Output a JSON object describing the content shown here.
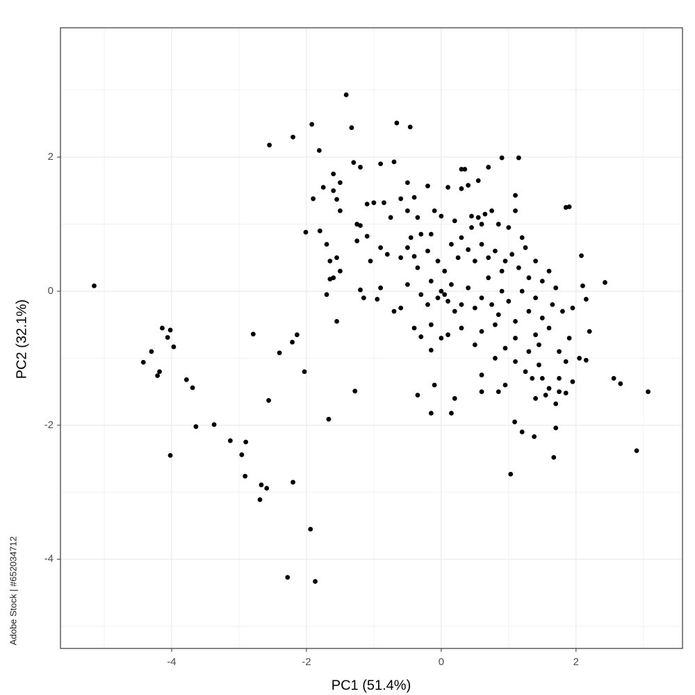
{
  "chart_data": {
    "type": "scatter",
    "x_label": "PC1 (51.4%)",
    "y_label": "PC2 (32.1%)",
    "watermark": "Adobe Stock | #652034712",
    "color": "#000000",
    "grid": true,
    "xlim": [
      -5.65,
      3.58
    ],
    "ylim": [
      -5.33,
      3.93
    ],
    "xticks": [
      -4,
      -2,
      0,
      2
    ],
    "yticks": [
      -4,
      -2,
      0,
      2
    ],
    "x": [
      -5.15,
      -4.14,
      -4.02,
      -4.06,
      -3.97,
      -4.3,
      -4.42,
      -4.18,
      -4.21,
      -3.78,
      -3.69,
      -3.64,
      -3.37,
      -4.02,
      -3.13,
      -2.9,
      -2.96,
      -2.91,
      -2.67,
      -2.59,
      -2.69,
      -2.2,
      -1.94,
      -2.28,
      -1.87,
      -2.79,
      -2.4,
      -2.21,
      -2.14,
      -2.03,
      -2.56,
      -1.67,
      -1.28,
      -1.41,
      -1.92,
      -2.2,
      -2.55,
      -1.33,
      -0.66,
      -0.46,
      -1.81,
      2.9,
      3.07,
      2.56,
      2.66,
      2.43,
      2.08,
      2.2,
      1.03,
      1.67,
      1.09,
      1.2,
      1.38,
      1.7,
      -2.01,
      -1.6,
      -1.5,
      -1.3,
      -1.2,
      -0.9,
      -0.7,
      -0.5,
      -0.4,
      -0.2,
      0.1,
      0.3,
      0.4,
      0.3,
      0.35,
      0.55,
      0.7,
      0.9,
      1.15,
      1.1,
      1.85,
      1.9,
      -1.9,
      -1.75,
      -1.6,
      -1.55,
      -1.5,
      -1.25,
      -1.2,
      -1.1,
      -1.0,
      -0.85,
      -0.75,
      -0.6,
      -0.5,
      -0.35,
      -0.1,
      0.0,
      0.2,
      0.45,
      0.55,
      0.65,
      0.6,
      0.75,
      0.85,
      1.0,
      1.1,
      1.2,
      0.45,
      -1.8,
      -1.7,
      -1.65,
      -1.55,
      -1.5,
      -1.6,
      -1.65,
      -1.25,
      -1.1,
      -1.05,
      -0.9,
      -0.8,
      -0.6,
      -0.5,
      -0.45,
      -0.4,
      -0.35,
      -0.3,
      -0.2,
      -0.15,
      -0.05,
      0.05,
      0.15,
      0.25,
      0.3,
      0.4,
      0.5,
      0.6,
      0.7,
      0.8,
      0.9,
      0.95,
      1.05,
      1.15,
      1.25,
      1.3,
      1.4,
      1.5,
      1.6,
      1.7,
      -1.7,
      -1.2,
      -1.15,
      -0.95,
      -0.9,
      -0.7,
      -0.6,
      -0.5,
      -0.3,
      -0.2,
      -0.15,
      -0.05,
      0.0,
      0.05,
      0.1,
      0.15,
      0.2,
      0.3,
      0.4,
      0.5,
      0.6,
      0.7,
      0.75,
      0.85,
      0.9,
      1.0,
      1.1,
      1.2,
      1.3,
      1.4,
      1.5,
      1.65,
      1.8,
      1.95,
      2.1,
      2.15,
      -1.55,
      -0.4,
      -0.3,
      -0.15,
      0.0,
      0.1,
      0.3,
      0.5,
      0.6,
      0.8,
      0.95,
      1.1,
      1.3,
      1.4,
      1.45,
      1.6,
      1.75,
      1.9,
      2.05,
      2.15,
      -0.15,
      0.6,
      0.8,
      0.95,
      1.1,
      1.25,
      1.35,
      1.45,
      1.5,
      1.6,
      1.75,
      1.85,
      1.95,
      0.6,
      0.85,
      1.4,
      1.55,
      1.75,
      1.85,
      -0.35,
      -0.1,
      -0.15,
      0.15,
      0.2,
      1.7
    ],
    "values": [
      0.08,
      -0.55,
      -0.58,
      -0.69,
      -0.83,
      -0.9,
      -1.06,
      -1.2,
      -1.26,
      -1.32,
      -1.44,
      -2.02,
      -1.99,
      -2.45,
      -2.23,
      -2.25,
      -2.44,
      -2.76,
      -2.89,
      -2.94,
      -3.11,
      -2.85,
      -3.55,
      -4.27,
      -4.33,
      -0.64,
      -0.92,
      -0.76,
      -0.65,
      -1.2,
      -1.63,
      -1.91,
      -1.49,
      2.93,
      2.49,
      2.3,
      2.18,
      2.44,
      2.51,
      2.45,
      2.1,
      -2.38,
      -1.5,
      -1.3,
      -1.38,
      0.13,
      0.53,
      -0.6,
      -2.73,
      -2.48,
      -1.95,
      -2.1,
      -2.17,
      -2.04,
      0.88,
      1.75,
      1.62,
      1.92,
      1.85,
      1.9,
      1.93,
      1.62,
      1.4,
      1.57,
      1.55,
      1.53,
      1.58,
      1.82,
      1.82,
      1.65,
      1.85,
      1.99,
      1.99,
      1.43,
      1.25,
      1.26,
      1.38,
      1.55,
      1.5,
      1.37,
      1.2,
      1.0,
      0.98,
      1.3,
      1.32,
      1.32,
      1.1,
      1.38,
      1.2,
      1.1,
      1.2,
      1.12,
      1.05,
      1.12,
      1.1,
      1.15,
      1.0,
      1.2,
      1.0,
      0.95,
      1.2,
      0.8,
      0.95,
      0.9,
      0.7,
      0.45,
      0.5,
      0.3,
      0.2,
      0.18,
      0.75,
      0.82,
      0.45,
      0.65,
      0.55,
      0.5,
      0.65,
      0.8,
      0.52,
      0.35,
      0.85,
      0.6,
      0.85,
      0.45,
      0.3,
      0.7,
      0.5,
      0.8,
      0.62,
      0.45,
      0.7,
      0.5,
      0.6,
      0.3,
      0.45,
      0.55,
      0.35,
      0.65,
      0.2,
      0.45,
      0.15,
      0.3,
      0.05,
      -0.05,
      0.02,
      -0.1,
      -0.12,
      0.05,
      -0.3,
      -0.25,
      0.1,
      -0.05,
      -0.2,
      0.15,
      -0.1,
      0.0,
      -0.05,
      -0.15,
      0.1,
      -0.3,
      -0.2,
      0.05,
      -0.25,
      -0.1,
      0.2,
      -0.2,
      -0.35,
      0.0,
      -0.15,
      -0.45,
      0.0,
      -0.3,
      -0.1,
      -0.4,
      -0.2,
      -0.3,
      -0.25,
      0.08,
      -0.12,
      -0.45,
      -0.55,
      -0.68,
      -0.5,
      -0.7,
      -0.65,
      -0.55,
      -0.8,
      -0.6,
      -0.5,
      -0.85,
      -0.7,
      -0.9,
      -0.65,
      -0.8,
      -0.55,
      -0.9,
      -0.7,
      -1.0,
      -1.03,
      -0.88,
      -1.25,
      -1.0,
      -1.4,
      -1.05,
      -1.2,
      -1.3,
      -1.1,
      -1.3,
      -1.45,
      -1.3,
      -1.05,
      -1.35,
      -1.5,
      -1.5,
      -1.6,
      -1.55,
      -1.5,
      -1.52,
      -1.55,
      -1.4,
      -1.82,
      -1.82,
      -1.6,
      -1.68
    ]
  }
}
